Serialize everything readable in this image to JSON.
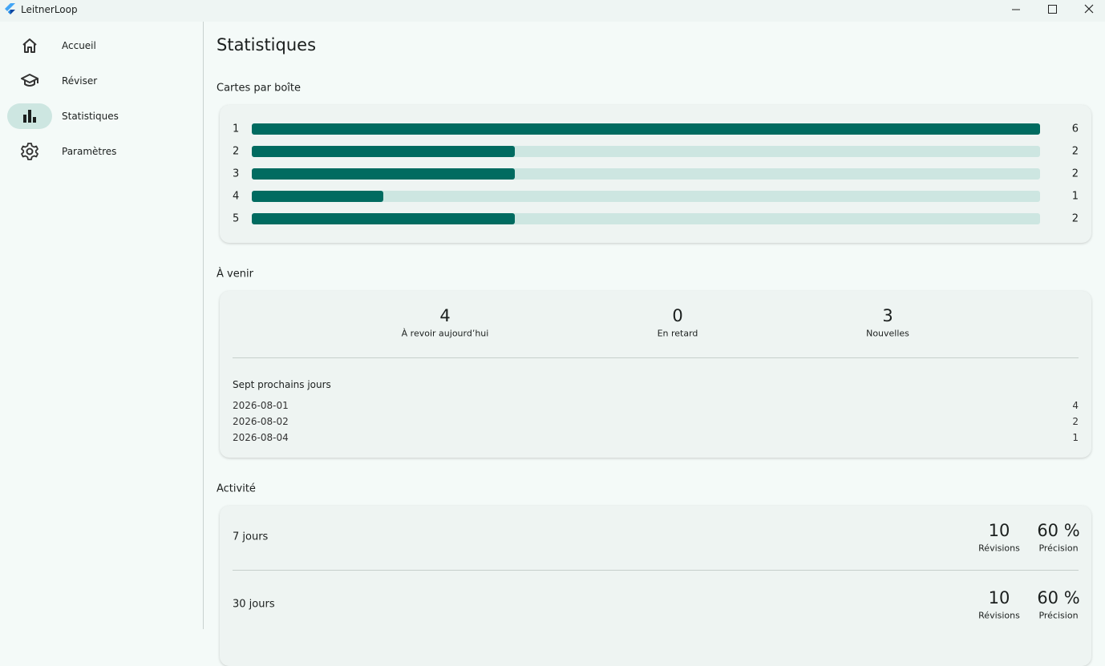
{
  "window": {
    "title": "LeitnerLoop"
  },
  "nav": [
    {
      "label": "Accueil",
      "selected": false
    },
    {
      "label": "Réviser",
      "selected": false
    },
    {
      "label": "Statistiques",
      "selected": true
    },
    {
      "label": "Paramètres",
      "selected": false
    }
  ],
  "page_title": "Statistiques",
  "boxes": {
    "heading": "Cartes par boîte",
    "items": [
      {
        "box": 1,
        "count": 6
      },
      {
        "box": 2,
        "count": 2
      },
      {
        "box": 3,
        "count": 2
      },
      {
        "box": 4,
        "count": 1
      },
      {
        "box": 5,
        "count": 2
      }
    ]
  },
  "upcoming": {
    "heading": "À venir",
    "stats": [
      {
        "value": 4,
        "label": "À revoir aujourd’hui"
      },
      {
        "value": 0,
        "label": "En retard"
      },
      {
        "value": 3,
        "label": "Nouvelles"
      }
    ],
    "next_heading": "Sept prochains jours",
    "days": [
      {
        "date": "2026-08-01",
        "count": 4
      },
      {
        "date": "2026-08-02",
        "count": 2
      },
      {
        "date": "2026-08-04",
        "count": 1
      }
    ]
  },
  "activity": {
    "heading": "Activité",
    "periods": [
      {
        "label": "7 jours",
        "reviews": 10,
        "reviews_label": "Révisions",
        "accuracy": "60 %",
        "accuracy_label": "Précision"
      },
      {
        "label": "30 jours",
        "reviews": 10,
        "reviews_label": "Révisions",
        "accuracy": "60 %",
        "accuracy_label": "Précision"
      }
    ]
  }
}
